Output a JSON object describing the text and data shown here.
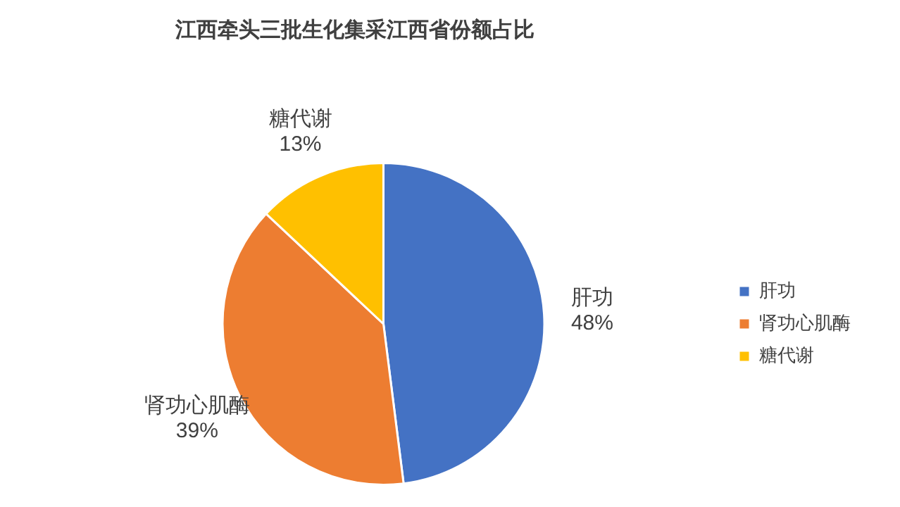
{
  "chart_data": {
    "type": "pie",
    "title": "江西牵头三批生化集采江西省份额占比",
    "categories": [
      "肝功",
      "肾功心肌酶",
      "糖代谢"
    ],
    "values": [
      48,
      39,
      13
    ],
    "value_labels": [
      "48%",
      "39%",
      "13%"
    ],
    "colors": [
      "#4472c4",
      "#ed7d31",
      "#ffc000"
    ],
    "legend": "right"
  }
}
